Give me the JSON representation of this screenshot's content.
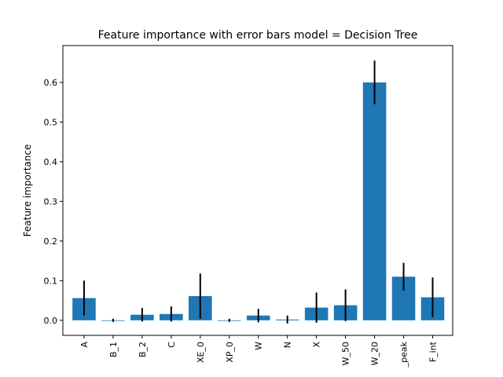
{
  "chart_data": {
    "type": "bar",
    "title": "Feature importance with error bars model = Decision Tree",
    "xlabel": "",
    "ylabel": "Feature importance",
    "categories": [
      "A",
      "B_1",
      "B_2",
      "C",
      "XE_0",
      "XP_0",
      "W",
      "N",
      "X",
      "W_50",
      "W_20",
      "_peak",
      "F_int"
    ],
    "values": [
      0.056,
      0.0,
      0.014,
      0.016,
      0.061,
      0.0,
      0.012,
      0.002,
      0.032,
      0.038,
      0.6,
      0.11,
      0.058
    ],
    "errors": [
      0.044,
      0.004,
      0.017,
      0.019,
      0.057,
      0.004,
      0.017,
      0.01,
      0.038,
      0.04,
      0.055,
      0.035,
      0.05
    ],
    "ylim": [
      -0.038,
      0.693
    ],
    "yticks": [
      0.0,
      0.1,
      0.2,
      0.3,
      0.4,
      0.5,
      0.6
    ],
    "ytick_labels": [
      "0.0",
      "0.1",
      "0.2",
      "0.3",
      "0.4",
      "0.5",
      "0.6"
    ],
    "grid": false,
    "bar_color": "#1f77b4",
    "errorbar_color": "#000000"
  }
}
